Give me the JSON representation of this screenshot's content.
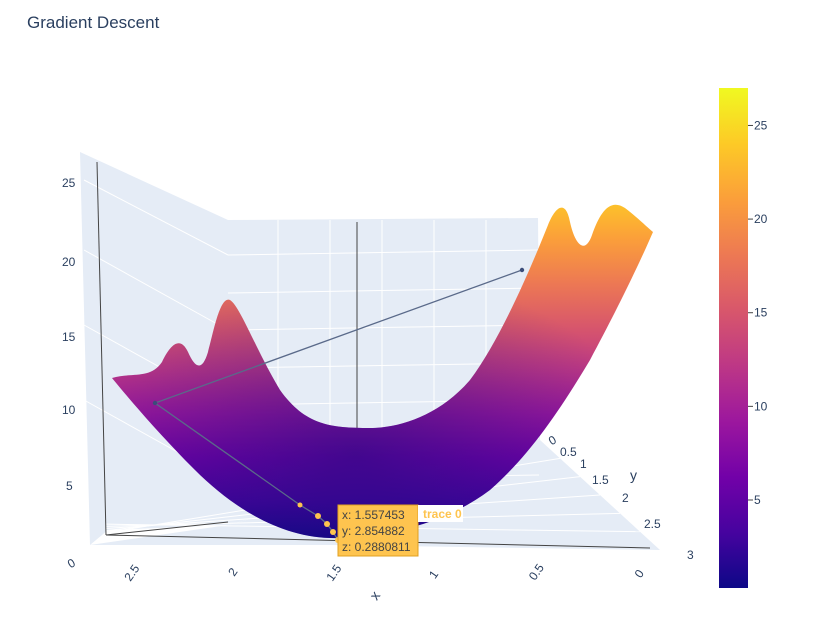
{
  "chart_data": {
    "type": "surface",
    "title": "Gradient Descent",
    "axes": {
      "x": {
        "label": "x",
        "ticks": [
          "2.5",
          "2",
          "1.5",
          "1",
          "0.5",
          "0"
        ],
        "range": [
          0,
          3
        ]
      },
      "y": {
        "label": "y",
        "ticks": [
          "0",
          "0.5",
          "1",
          "1.5",
          "2",
          "2.5",
          "3"
        ],
        "range": [
          0,
          3
        ]
      },
      "z": {
        "label": "",
        "ticks": [
          "0",
          "5",
          "10",
          "15",
          "20",
          "25"
        ],
        "range": [
          0,
          27
        ]
      }
    },
    "colorscale": {
      "name": "plasma",
      "stops": [
        "#0d0887",
        "#46039f",
        "#7201a8",
        "#9c179e",
        "#bd3786",
        "#d8576b",
        "#ed7953",
        "#fb9f3a",
        "#fdca26",
        "#f0f921"
      ],
      "range": [
        0.3,
        27
      ],
      "ticks": [
        5,
        10,
        15,
        20,
        25
      ]
    },
    "series": [
      {
        "name": "surface",
        "type": "surface"
      },
      {
        "name": "trace 0",
        "type": "scatter3d",
        "color": "#fec44f"
      }
    ],
    "hover": {
      "trace": "trace 0",
      "x": "x: 1.557453",
      "y": "y: 2.854882",
      "z": "z: 0.2880811"
    }
  }
}
